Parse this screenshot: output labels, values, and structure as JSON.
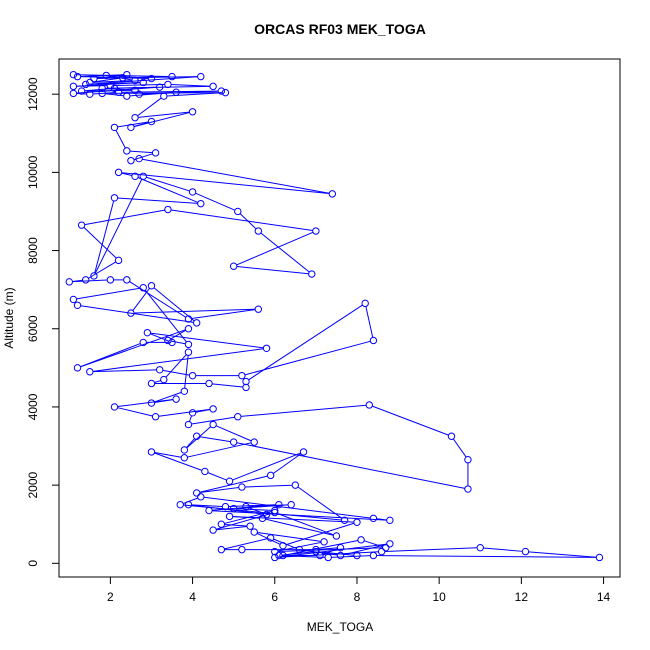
{
  "chart_data": {
    "type": "line",
    "title": "ORCAS RF03 MEK_TOGA",
    "xlabel": "MEK_TOGA",
    "ylabel": "Altitude (m)",
    "xlim": [
      0.75,
      14.4
    ],
    "ylim": [
      -350,
      12900
    ],
    "xticks": [
      2,
      4,
      6,
      8,
      10,
      12,
      14
    ],
    "yticks": [
      0,
      2000,
      4000,
      6000,
      8000,
      10000,
      12000
    ],
    "grid": false,
    "legend": "none",
    "series": [
      {
        "color": "#0000ff",
        "marker": "open-circle",
        "points": [
          [
            1.1,
            12500
          ],
          [
            3.5,
            12450
          ],
          [
            1.6,
            12400
          ],
          [
            2.4,
            12500
          ],
          [
            1.2,
            12450
          ],
          [
            3.0,
            12400
          ],
          [
            1.9,
            12480
          ],
          [
            2.6,
            12350
          ],
          [
            1.5,
            12300
          ],
          [
            2.3,
            12420
          ],
          [
            4.2,
            12450
          ],
          [
            1.4,
            12250
          ],
          [
            2.8,
            12300
          ],
          [
            1.1,
            12200
          ],
          [
            2.0,
            12220
          ],
          [
            3.4,
            12250
          ],
          [
            4.5,
            12200
          ],
          [
            1.8,
            12150
          ],
          [
            2.6,
            12100
          ],
          [
            1.3,
            12080
          ],
          [
            2.1,
            12150
          ],
          [
            3.2,
            12180
          ],
          [
            1.1,
            12020
          ],
          [
            1.5,
            12000
          ],
          [
            2.2,
            12050
          ],
          [
            4.7,
            12080
          ],
          [
            2.7,
            12000
          ],
          [
            3.6,
            12050
          ],
          [
            2.4,
            11950
          ],
          [
            1.8,
            12020
          ],
          [
            4.8,
            12040
          ],
          [
            3.3,
            11950
          ],
          [
            2.6,
            11400
          ],
          [
            4.0,
            11550
          ],
          [
            2.5,
            11150
          ],
          [
            3.0,
            11300
          ],
          [
            2.1,
            11150
          ],
          [
            2.4,
            10550
          ],
          [
            3.1,
            10500
          ],
          [
            2.5,
            10300
          ],
          [
            2.7,
            10350
          ],
          [
            7.4,
            9450
          ],
          [
            2.2,
            10000
          ],
          [
            2.6,
            9900
          ],
          [
            4.2,
            9200
          ],
          [
            2.1,
            9350
          ],
          [
            1.6,
            7350
          ],
          [
            2.8,
            9900
          ],
          [
            4.0,
            9500
          ],
          [
            5.1,
            9000
          ],
          [
            5.6,
            8500
          ],
          [
            6.9,
            7400
          ],
          [
            5.0,
            7600
          ],
          [
            7.0,
            8500
          ],
          [
            3.4,
            9050
          ],
          [
            1.3,
            8650
          ],
          [
            2.2,
            7750
          ],
          [
            1.4,
            7250
          ],
          [
            1.0,
            7200
          ],
          [
            2.0,
            7250
          ],
          [
            2.4,
            7250
          ],
          [
            3.9,
            6250
          ],
          [
            5.6,
            6500
          ],
          [
            2.5,
            6400
          ],
          [
            3.0,
            7100
          ],
          [
            4.1,
            6150
          ],
          [
            1.2,
            6600
          ],
          [
            1.1,
            6750
          ],
          [
            2.8,
            7050
          ],
          [
            3.9,
            5600
          ],
          [
            3.4,
            5700
          ],
          [
            3.9,
            6000
          ],
          [
            1.2,
            5000
          ],
          [
            2.8,
            5650
          ],
          [
            3.5,
            5650
          ],
          [
            2.9,
            5900
          ],
          [
            5.8,
            5500
          ],
          [
            1.5,
            4900
          ],
          [
            3.2,
            4950
          ],
          [
            4.0,
            4800
          ],
          [
            5.2,
            4800
          ],
          [
            8.4,
            5700
          ],
          [
            8.2,
            6650
          ],
          [
            5.3,
            4650
          ],
          [
            5.3,
            4500
          ],
          [
            4.4,
            4600
          ],
          [
            3.0,
            4600
          ],
          [
            3.3,
            4700
          ],
          [
            3.9,
            5400
          ],
          [
            3.8,
            4400
          ],
          [
            3.0,
            4100
          ],
          [
            3.6,
            4200
          ],
          [
            2.1,
            4000
          ],
          [
            3.1,
            3750
          ],
          [
            4.5,
            3950
          ],
          [
            4.0,
            3850
          ],
          [
            3.9,
            3550
          ],
          [
            5.1,
            3750
          ],
          [
            8.3,
            4050
          ],
          [
            10.3,
            3250
          ],
          [
            10.7,
            2650
          ],
          [
            10.7,
            1900
          ],
          [
            5.0,
            3100
          ],
          [
            4.1,
            3250
          ],
          [
            3.8,
            2900
          ],
          [
            4.5,
            3550
          ],
          [
            5.5,
            3100
          ],
          [
            3.8,
            2700
          ],
          [
            3.0,
            2850
          ],
          [
            4.3,
            2350
          ],
          [
            4.9,
            2100
          ],
          [
            6.7,
            2850
          ],
          [
            5.9,
            2250
          ],
          [
            4.1,
            1800
          ],
          [
            5.2,
            1950
          ],
          [
            6.5,
            2000
          ],
          [
            7.7,
            1100
          ],
          [
            3.7,
            1500
          ],
          [
            4.2,
            1700
          ],
          [
            8.4,
            1150
          ],
          [
            8.8,
            1100
          ],
          [
            4.4,
            1350
          ],
          [
            6.1,
            1500
          ],
          [
            4.8,
            1450
          ],
          [
            3.9,
            1500
          ],
          [
            5.8,
            1250
          ],
          [
            5.3,
            1450
          ],
          [
            6.4,
            1500
          ],
          [
            5.0,
            1400
          ],
          [
            6.0,
            1350
          ],
          [
            4.7,
            1000
          ],
          [
            5.4,
            950
          ],
          [
            4.5,
            850
          ],
          [
            6.0,
            1300
          ],
          [
            7.5,
            700
          ],
          [
            5.7,
            1150
          ],
          [
            4.9,
            1200
          ],
          [
            8.0,
            1050
          ],
          [
            6.2,
            450
          ],
          [
            5.5,
            800
          ],
          [
            7.2,
            550
          ],
          [
            6.0,
            300
          ],
          [
            8.7,
            400
          ],
          [
            8.1,
            600
          ],
          [
            6.2,
            200
          ],
          [
            7.1,
            200
          ],
          [
            7.6,
            400
          ],
          [
            7.0,
            350
          ],
          [
            5.2,
            350
          ],
          [
            4.7,
            350
          ],
          [
            5.9,
            650
          ],
          [
            6.6,
            350
          ],
          [
            7.6,
            200
          ],
          [
            8.8,
            500
          ],
          [
            6.0,
            150
          ],
          [
            8.6,
            300
          ],
          [
            11.0,
            400
          ],
          [
            12.1,
            300
          ],
          [
            13.9,
            150
          ],
          [
            8.4,
            200
          ],
          [
            7.3,
            150
          ],
          [
            6.1,
            200
          ],
          [
            7.0,
            300
          ],
          [
            8.0,
            200
          ]
        ]
      }
    ]
  }
}
